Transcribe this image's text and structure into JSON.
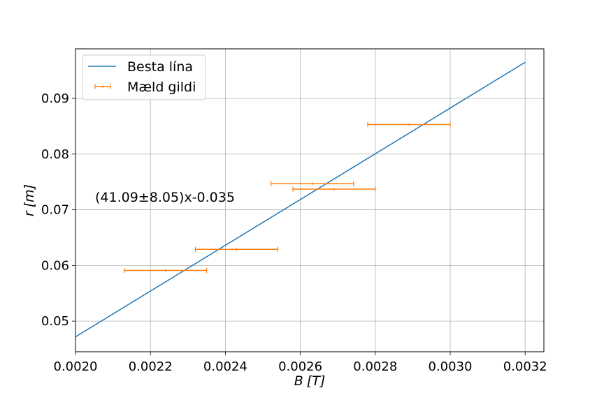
{
  "chart_data": {
    "type": "scatter",
    "xlabel": "B [T]",
    "ylabel": "r [m]",
    "xlabel_parts": {
      "symbol": "B",
      "unit": "[T]"
    },
    "ylabel_parts": {
      "symbol": "r",
      "unit": "[m]"
    },
    "xlim": [
      0.002,
      0.00325
    ],
    "ylim": [
      0.0445,
      0.0989
    ],
    "x_ticks": [
      0.002,
      0.0022,
      0.0024,
      0.0026,
      0.0028,
      0.003,
      0.0032
    ],
    "x_tick_labels": [
      "0.0020",
      "0.0022",
      "0.0024",
      "0.0026",
      "0.0028",
      "0.0030",
      "0.0032"
    ],
    "y_ticks": [
      0.05,
      0.06,
      0.07,
      0.08,
      0.09
    ],
    "y_tick_labels": [
      "0.05",
      "0.06",
      "0.07",
      "0.08",
      "0.09"
    ],
    "grid": true,
    "legend_position": "top-left",
    "series": [
      {
        "name": "Besta lína",
        "kind": "line",
        "color": "#1f77b4",
        "slope": 41.09,
        "intercept": -0.035,
        "x": [
          0.002,
          0.0032
        ]
      },
      {
        "name": "Mæld gildi",
        "kind": "errorbar",
        "color": "#ff7f0e",
        "points": [
          {
            "x": 0.00224,
            "y": 0.0591,
            "xerr": 0.00011
          },
          {
            "x": 0.00243,
            "y": 0.0629,
            "xerr": 0.00011
          },
          {
            "x": 0.002632,
            "y": 0.0747,
            "xerr": 0.00011
          },
          {
            "x": 0.00269,
            "y": 0.0737,
            "xerr": 0.00011
          },
          {
            "x": 0.00289,
            "y": 0.0853,
            "xerr": 0.00011
          }
        ]
      }
    ],
    "annotation": "(41.09±8.05)x-0.035"
  }
}
